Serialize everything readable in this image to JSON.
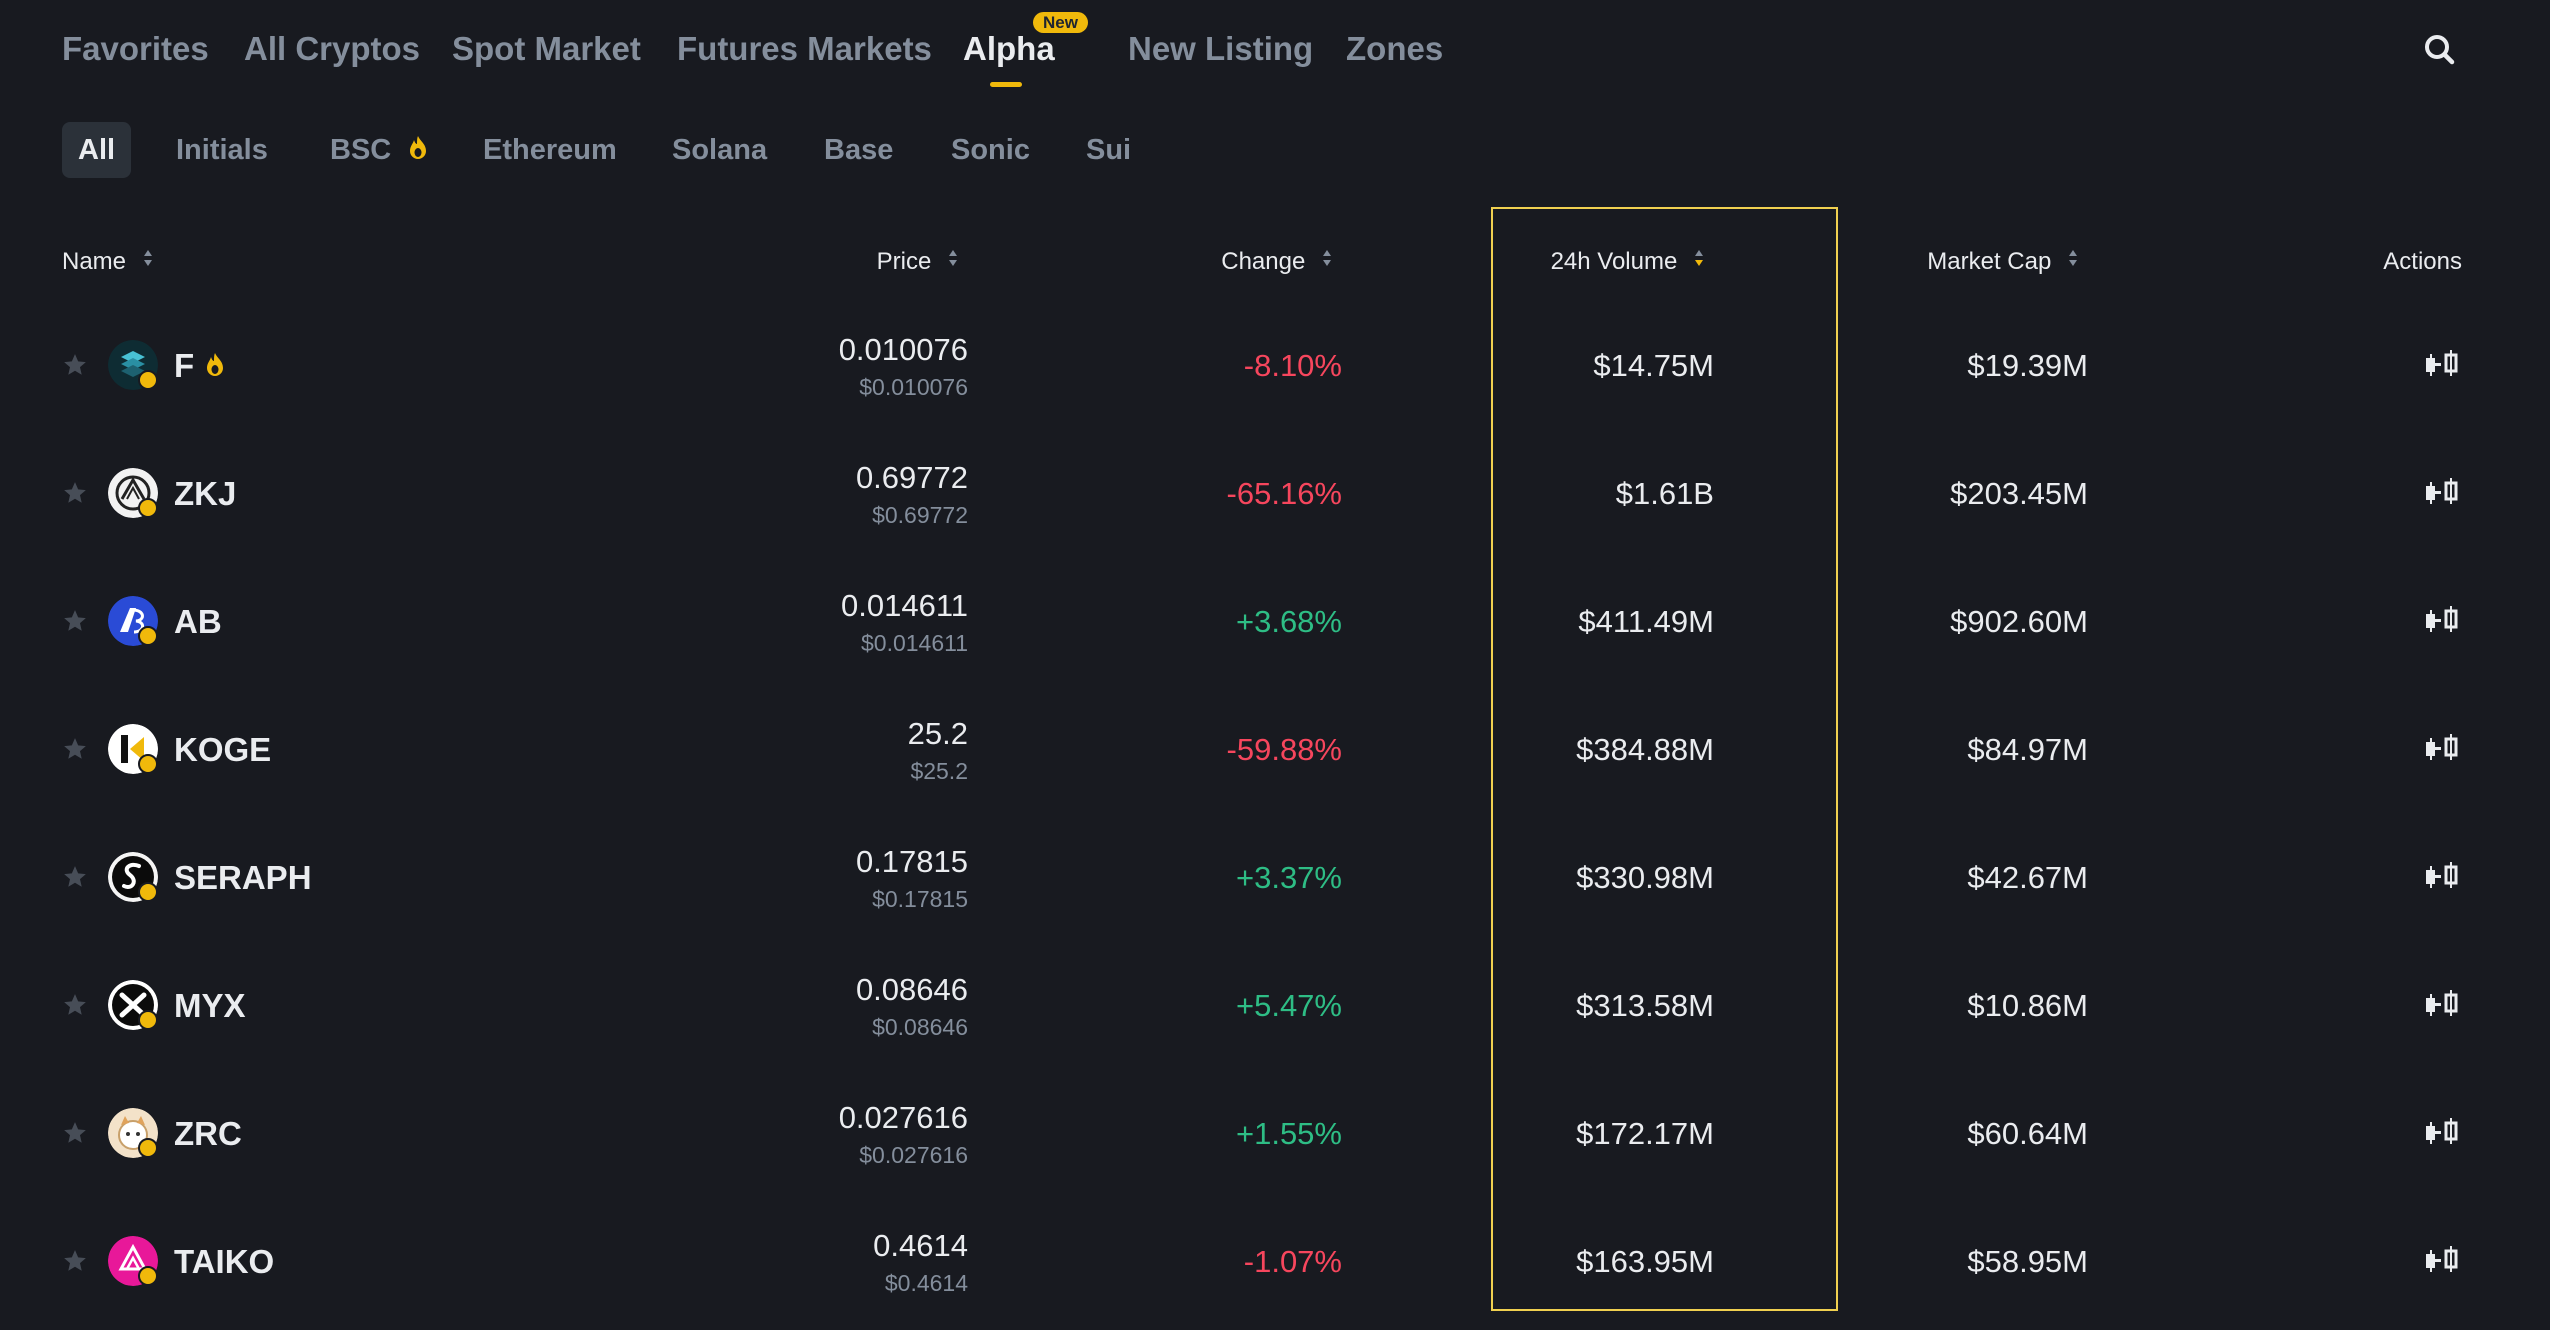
{
  "nav": {
    "tabs": [
      {
        "label": "Favorites"
      },
      {
        "label": "All Cryptos"
      },
      {
        "label": "Spot Market"
      },
      {
        "label": "Futures Markets"
      },
      {
        "label": "Alpha",
        "badge": "New",
        "active": true
      },
      {
        "label": "New Listing"
      },
      {
        "label": "Zones"
      }
    ],
    "search_icon": "search-icon"
  },
  "filters": [
    {
      "label": "All",
      "active": true
    },
    {
      "label": "Initials"
    },
    {
      "label": "BSC",
      "icon": "fire-icon"
    },
    {
      "label": "Ethereum"
    },
    {
      "label": "Solana"
    },
    {
      "label": "Base"
    },
    {
      "label": "Sonic"
    },
    {
      "label": "Sui"
    }
  ],
  "table": {
    "headers": {
      "name": "Name",
      "price": "Price",
      "change": "Change",
      "volume": "24h Volume",
      "market_cap": "Market Cap",
      "actions": "Actions"
    },
    "rows": [
      {
        "symbol": "F",
        "hot": true,
        "price": "0.010076",
        "price_usd": "$0.010076",
        "change": "-8.10%",
        "volume": "$14.75M",
        "market_cap": "$19.39M"
      },
      {
        "symbol": "ZKJ",
        "price": "0.69772",
        "price_usd": "$0.69772",
        "change": "-65.16%",
        "volume": "$1.61B",
        "market_cap": "$203.45M"
      },
      {
        "symbol": "AB",
        "price": "0.014611",
        "price_usd": "$0.014611",
        "change": "+3.68%",
        "volume": "$411.49M",
        "market_cap": "$902.60M"
      },
      {
        "symbol": "KOGE",
        "price": "25.2",
        "price_usd": "$25.2",
        "change": "-59.88%",
        "volume": "$384.88M",
        "market_cap": "$84.97M"
      },
      {
        "symbol": "SERAPH",
        "price": "0.17815",
        "price_usd": "$0.17815",
        "change": "+3.37%",
        "volume": "$330.98M",
        "market_cap": "$42.67M"
      },
      {
        "symbol": "MYX",
        "price": "0.08646",
        "price_usd": "$0.08646",
        "change": "+5.47%",
        "volume": "$313.58M",
        "market_cap": "$10.86M"
      },
      {
        "symbol": "ZRC",
        "price": "0.027616",
        "price_usd": "$0.027616",
        "change": "+1.55%",
        "volume": "$172.17M",
        "market_cap": "$60.64M"
      },
      {
        "symbol": "TAIKO",
        "price": "0.4614",
        "price_usd": "$0.4614",
        "change": "-1.07%",
        "volume": "$163.95M",
        "market_cap": "$58.95M"
      }
    ]
  },
  "colors": {
    "background": "#181a20",
    "accent": "#f0b90b",
    "up": "#2ebd85",
    "down": "#f6465d",
    "muted": "#848e9c",
    "highlight_border": "#f0d050"
  }
}
